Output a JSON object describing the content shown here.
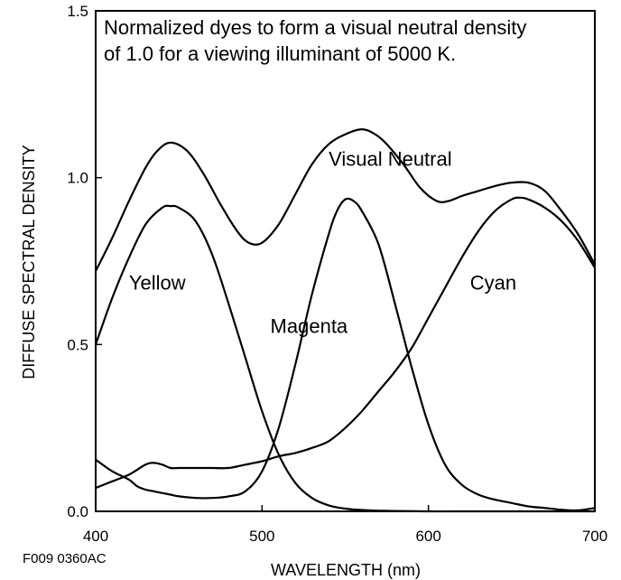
{
  "chart_data": {
    "type": "line",
    "annotation_lines": [
      "Normalized dyes to form a visual neutral density",
      "of 1.0 for a viewing illuminant of 5000 K."
    ],
    "xlabel": "WAVELENGTH (nm)",
    "ylabel": "DIFFUSE SPECTRAL DENSITY",
    "xlim": [
      400,
      700
    ],
    "ylim": [
      0,
      1.5
    ],
    "x_ticks": [
      "400",
      "500",
      "600",
      "700"
    ],
    "y_ticks": [
      "0.0",
      "0.5",
      "1.0",
      "1.5"
    ],
    "figure_code": "F009  0360AC",
    "grid": false,
    "series": [
      {
        "name": "Visual Neutral",
        "x": [
          400,
          410,
          420,
          430,
          437,
          445,
          455,
          465,
          475,
          485,
          492,
          500,
          510,
          520,
          530,
          540,
          550,
          560,
          568,
          575,
          585,
          595,
          605,
          612,
          620,
          630,
          640,
          650,
          660,
          670,
          680,
          690,
          700
        ],
        "y": [
          0.72,
          0.82,
          0.93,
          1.03,
          1.08,
          1.105,
          1.08,
          1.01,
          0.92,
          0.84,
          0.805,
          0.805,
          0.86,
          0.95,
          1.04,
          1.1,
          1.13,
          1.145,
          1.13,
          1.1,
          1.04,
          0.97,
          0.93,
          0.93,
          0.945,
          0.96,
          0.975,
          0.985,
          0.985,
          0.96,
          0.9,
          0.83,
          0.74
        ]
      },
      {
        "name": "Yellow",
        "x": [
          400,
          410,
          420,
          430,
          440,
          445,
          450,
          460,
          470,
          480,
          490,
          500,
          510,
          520,
          530,
          540,
          550,
          560,
          570,
          580,
          600,
          620,
          650,
          700
        ],
        "y": [
          0.5,
          0.64,
          0.76,
          0.86,
          0.91,
          0.915,
          0.91,
          0.87,
          0.77,
          0.62,
          0.46,
          0.3,
          0.17,
          0.085,
          0.04,
          0.018,
          0.008,
          0.004,
          0.002,
          0.001,
          0.0,
          0.0,
          0.0,
          0.0
        ]
      },
      {
        "name": "Magenta",
        "x": [
          400,
          410,
          420,
          425,
          430,
          435,
          440,
          445,
          450,
          460,
          470,
          480,
          490,
          500,
          510,
          520,
          530,
          540,
          545,
          550,
          555,
          560,
          570,
          580,
          590,
          600,
          610,
          620,
          630,
          640,
          650,
          660,
          670,
          680,
          690,
          700
        ],
        "y": [
          0.155,
          0.12,
          0.095,
          0.075,
          0.065,
          0.06,
          0.055,
          0.05,
          0.045,
          0.04,
          0.04,
          0.045,
          0.06,
          0.12,
          0.25,
          0.44,
          0.65,
          0.83,
          0.9,
          0.935,
          0.93,
          0.9,
          0.8,
          0.62,
          0.43,
          0.26,
          0.14,
          0.08,
          0.05,
          0.035,
          0.025,
          0.015,
          0.01,
          0.005,
          0.003,
          0.01
        ]
      },
      {
        "name": "Cyan",
        "x": [
          400,
          410,
          420,
          430,
          435,
          440,
          445,
          450,
          460,
          470,
          480,
          490,
          500,
          510,
          520,
          530,
          540,
          550,
          560,
          570,
          580,
          590,
          600,
          610,
          620,
          630,
          640,
          650,
          655,
          660,
          670,
          680,
          690,
          700
        ],
        "y": [
          0.07,
          0.09,
          0.11,
          0.14,
          0.145,
          0.14,
          0.13,
          0.13,
          0.13,
          0.13,
          0.13,
          0.14,
          0.15,
          0.165,
          0.175,
          0.19,
          0.21,
          0.25,
          0.3,
          0.36,
          0.42,
          0.49,
          0.58,
          0.67,
          0.76,
          0.84,
          0.9,
          0.935,
          0.94,
          0.935,
          0.91,
          0.87,
          0.81,
          0.73
        ]
      }
    ],
    "series_labels": [
      {
        "text": "Visual Neutral",
        "x": 540,
        "y": 1.035
      },
      {
        "text": "Yellow",
        "x": 420,
        "y": 0.665
      },
      {
        "text": "Magenta",
        "x": 505,
        "y": 0.535
      },
      {
        "text": "Cyan",
        "x": 625,
        "y": 0.665
      }
    ]
  }
}
